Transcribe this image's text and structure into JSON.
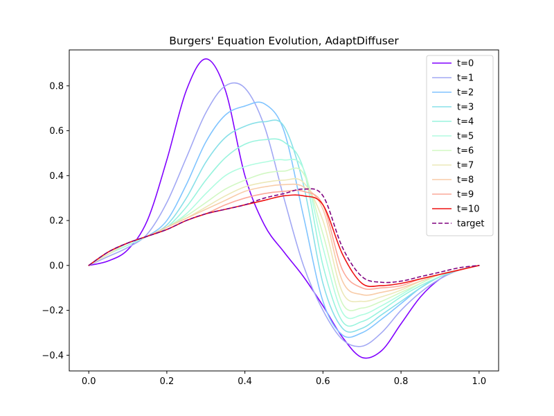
{
  "chart_data": {
    "type": "line",
    "title": "Burgers' Equation Evolution, AdaptDiffuser",
    "xlabel": "",
    "ylabel": "",
    "xlim": [
      -0.05,
      1.05
    ],
    "ylim": [
      -0.47,
      0.96
    ],
    "xticks": [
      0.0,
      0.2,
      0.4,
      0.6,
      0.8,
      1.0
    ],
    "xtick_labels": [
      "0.0",
      "0.2",
      "0.4",
      "0.6",
      "0.8",
      "1.0"
    ],
    "yticks": [
      -0.4,
      -0.2,
      0.0,
      0.2,
      0.4,
      0.6,
      0.8
    ],
    "ytick_labels": [
      "−0.4",
      "−0.2",
      "0.0",
      "0.2",
      "0.4",
      "0.6",
      "0.8"
    ],
    "grid": false,
    "legend_position": "top-right",
    "x": [
      0.0,
      0.05,
      0.1,
      0.15,
      0.2,
      0.25,
      0.3,
      0.35,
      0.4,
      0.45,
      0.5,
      0.55,
      0.6,
      0.65,
      0.7,
      0.75,
      0.8,
      0.85,
      0.9,
      0.95,
      1.0
    ],
    "series": [
      {
        "name": "t=0",
        "color": "#8000ff",
        "dash": false,
        "values": [
          0.0,
          0.02,
          0.07,
          0.2,
          0.47,
          0.78,
          0.92,
          0.78,
          0.4,
          0.18,
          0.06,
          -0.05,
          -0.18,
          -0.32,
          -0.41,
          -0.38,
          -0.26,
          -0.14,
          -0.06,
          -0.02,
          0.0
        ]
      },
      {
        "name": "t=1",
        "color": "#a2a8f4",
        "dash": false,
        "values": [
          0.0,
          0.04,
          0.08,
          0.14,
          0.28,
          0.48,
          0.68,
          0.8,
          0.79,
          0.62,
          0.3,
          0.0,
          -0.2,
          -0.33,
          -0.36,
          -0.3,
          -0.2,
          -0.12,
          -0.06,
          -0.02,
          0.0
        ]
      },
      {
        "name": "t=2",
        "color": "#80c4ff",
        "dash": false,
        "values": [
          0.0,
          0.05,
          0.09,
          0.13,
          0.2,
          0.36,
          0.55,
          0.67,
          0.71,
          0.72,
          0.6,
          0.22,
          -0.16,
          -0.31,
          -0.3,
          -0.24,
          -0.17,
          -0.1,
          -0.05,
          -0.02,
          0.0
        ]
      },
      {
        "name": "t=3",
        "color": "#88e0e8",
        "dash": false,
        "values": [
          0.0,
          0.05,
          0.09,
          0.13,
          0.18,
          0.3,
          0.46,
          0.57,
          0.62,
          0.64,
          0.62,
          0.36,
          -0.08,
          -0.28,
          -0.28,
          -0.22,
          -0.16,
          -0.1,
          -0.05,
          -0.02,
          0.0
        ]
      },
      {
        "name": "t=4",
        "color": "#99f4de",
        "dash": false,
        "values": [
          0.0,
          0.05,
          0.09,
          0.13,
          0.17,
          0.26,
          0.38,
          0.48,
          0.54,
          0.56,
          0.55,
          0.43,
          0.0,
          -0.25,
          -0.25,
          -0.2,
          -0.14,
          -0.09,
          -0.05,
          -0.02,
          0.0
        ]
      },
      {
        "name": "t=5",
        "color": "#b0fce0",
        "dash": false,
        "values": [
          0.0,
          0.05,
          0.09,
          0.13,
          0.17,
          0.23,
          0.32,
          0.4,
          0.44,
          0.46,
          0.47,
          0.43,
          0.08,
          -0.21,
          -0.22,
          -0.18,
          -0.13,
          -0.08,
          -0.04,
          -0.02,
          0.0
        ]
      },
      {
        "name": "t=6",
        "color": "#d2f8c4",
        "dash": false,
        "values": [
          0.0,
          0.05,
          0.1,
          0.13,
          0.17,
          0.22,
          0.28,
          0.34,
          0.38,
          0.41,
          0.42,
          0.41,
          0.14,
          -0.17,
          -0.19,
          -0.16,
          -0.12,
          -0.08,
          -0.04,
          -0.02,
          0.0
        ]
      },
      {
        "name": "t=7",
        "color": "#ece8b8",
        "dash": false,
        "values": [
          0.0,
          0.05,
          0.1,
          0.13,
          0.17,
          0.21,
          0.26,
          0.31,
          0.35,
          0.37,
          0.38,
          0.37,
          0.2,
          -0.12,
          -0.16,
          -0.14,
          -0.11,
          -0.07,
          -0.04,
          -0.02,
          0.0
        ]
      },
      {
        "name": "t=8",
        "color": "#f8cca8",
        "dash": false,
        "values": [
          0.0,
          0.06,
          0.1,
          0.13,
          0.17,
          0.21,
          0.25,
          0.29,
          0.33,
          0.35,
          0.36,
          0.35,
          0.25,
          -0.07,
          -0.13,
          -0.12,
          -0.1,
          -0.07,
          -0.04,
          -0.02,
          0.0
        ]
      },
      {
        "name": "t=9",
        "color": "#fca898",
        "dash": false,
        "values": [
          0.0,
          0.06,
          0.1,
          0.13,
          0.16,
          0.2,
          0.23,
          0.27,
          0.3,
          0.32,
          0.33,
          0.33,
          0.27,
          -0.02,
          -0.1,
          -0.1,
          -0.09,
          -0.06,
          -0.04,
          -0.02,
          0.0
        ]
      },
      {
        "name": "t=10",
        "color": "#ee1111",
        "dash": false,
        "values": [
          0.0,
          0.06,
          0.1,
          0.13,
          0.16,
          0.2,
          0.23,
          0.25,
          0.27,
          0.29,
          0.31,
          0.31,
          0.27,
          0.05,
          -0.08,
          -0.09,
          -0.08,
          -0.06,
          -0.04,
          -0.02,
          0.0
        ]
      },
      {
        "name": "target",
        "color": "#7f007f",
        "dash": true,
        "values": [
          0.0,
          0.06,
          0.1,
          0.13,
          0.16,
          0.2,
          0.23,
          0.25,
          0.27,
          0.3,
          0.32,
          0.34,
          0.31,
          0.08,
          -0.05,
          -0.075,
          -0.07,
          -0.05,
          -0.03,
          -0.01,
          0.0
        ]
      }
    ]
  }
}
